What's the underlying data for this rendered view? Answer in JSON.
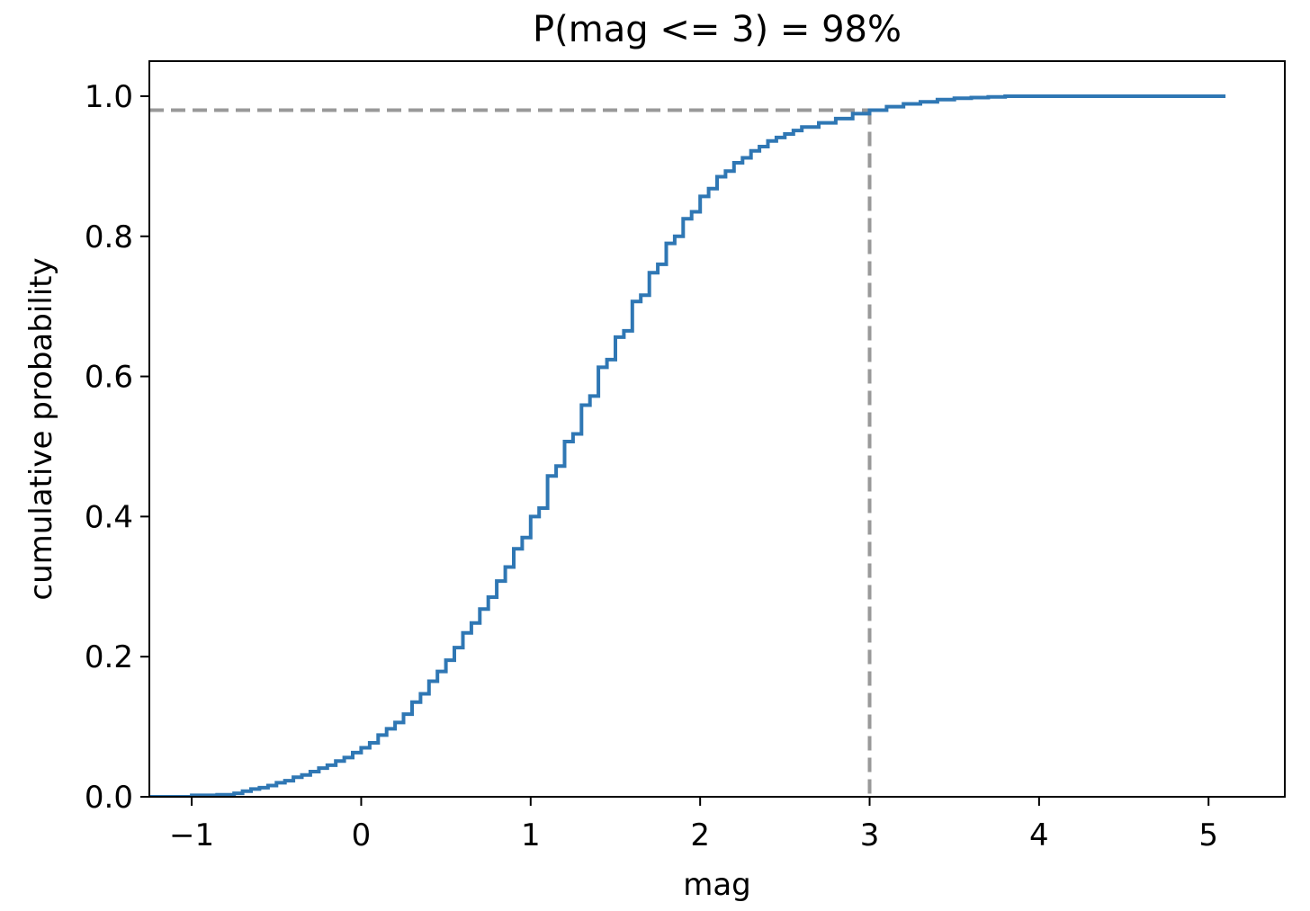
{
  "chart_data": {
    "type": "line",
    "title": "P(mag <= 3) = 98%",
    "xlabel": "mag",
    "ylabel": "cumulative probability",
    "xlim": [
      -1.25,
      5.45
    ],
    "ylim": [
      0.0,
      1.05
    ],
    "xticks": [
      -1,
      0,
      1,
      2,
      3,
      4,
      5
    ],
    "xtick_labels": [
      "−1",
      "0",
      "1",
      "2",
      "3",
      "4",
      "5"
    ],
    "yticks": [
      0.0,
      0.2,
      0.4,
      0.6,
      0.8,
      1.0
    ],
    "ytick_labels": [
      "0.0",
      "0.2",
      "0.4",
      "0.6",
      "0.8",
      "1.0"
    ],
    "grid": false,
    "series": [
      {
        "color": "#2f77b4",
        "style": "step-post",
        "x": [
          -1.25,
          -1.0,
          -0.85,
          -0.75,
          -0.7,
          -0.65,
          -0.6,
          -0.55,
          -0.5,
          -0.45,
          -0.4,
          -0.35,
          -0.3,
          -0.25,
          -0.2,
          -0.15,
          -0.1,
          -0.05,
          0.0,
          0.05,
          0.1,
          0.15,
          0.2,
          0.25,
          0.3,
          0.35,
          0.4,
          0.45,
          0.5,
          0.55,
          0.6,
          0.65,
          0.7,
          0.75,
          0.8,
          0.85,
          0.9,
          0.95,
          1.0,
          1.05,
          1.1,
          1.15,
          1.2,
          1.25,
          1.3,
          1.35,
          1.4,
          1.45,
          1.5,
          1.55,
          1.6,
          1.65,
          1.7,
          1.75,
          1.8,
          1.85,
          1.9,
          1.95,
          2.0,
          2.05,
          2.1,
          2.15,
          2.2,
          2.25,
          2.3,
          2.35,
          2.4,
          2.45,
          2.5,
          2.55,
          2.6,
          2.7,
          2.8,
          2.9,
          3.0,
          3.1,
          3.2,
          3.3,
          3.4,
          3.5,
          3.6,
          3.7,
          3.8,
          4.0,
          4.2,
          5.1
        ],
        "y": [
          0.0,
          0.002,
          0.003,
          0.005,
          0.008,
          0.011,
          0.013,
          0.016,
          0.02,
          0.023,
          0.028,
          0.031,
          0.036,
          0.041,
          0.045,
          0.051,
          0.056,
          0.063,
          0.07,
          0.077,
          0.088,
          0.097,
          0.106,
          0.118,
          0.135,
          0.147,
          0.165,
          0.179,
          0.195,
          0.213,
          0.234,
          0.248,
          0.268,
          0.285,
          0.308,
          0.328,
          0.354,
          0.37,
          0.4,
          0.412,
          0.458,
          0.472,
          0.507,
          0.518,
          0.559,
          0.572,
          0.613,
          0.624,
          0.656,
          0.665,
          0.707,
          0.716,
          0.748,
          0.76,
          0.79,
          0.8,
          0.825,
          0.835,
          0.857,
          0.868,
          0.885,
          0.893,
          0.905,
          0.912,
          0.922,
          0.928,
          0.936,
          0.941,
          0.946,
          0.951,
          0.956,
          0.962,
          0.968,
          0.975,
          0.98,
          0.985,
          0.989,
          0.992,
          0.995,
          0.997,
          0.998,
          0.999,
          1.0,
          1.0,
          1.0,
          1.0
        ]
      }
    ],
    "reference_lines": {
      "color": "#999999",
      "x": 3,
      "y": 0.98
    }
  }
}
